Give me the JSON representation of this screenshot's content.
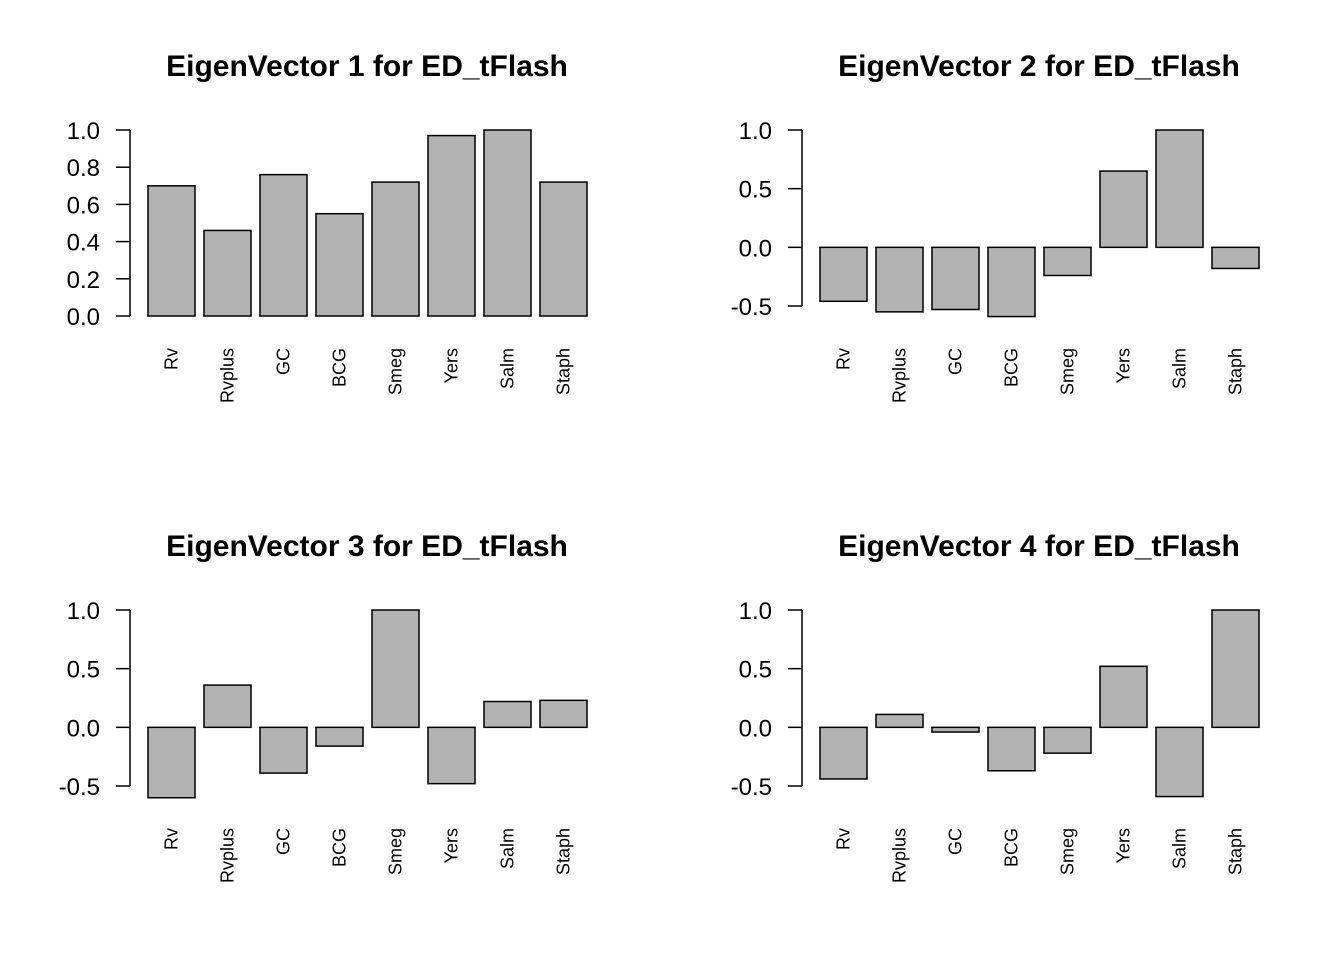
{
  "chart_data": [
    {
      "type": "bar",
      "title": "EigenVector 1 for ED_tFlash",
      "categories": [
        "Rv",
        "Rvplus",
        "GC",
        "BCG",
        "Smeg",
        "Yers",
        "Salm",
        "Staph"
      ],
      "values": [
        0.7,
        0.46,
        0.76,
        0.55,
        0.72,
        0.97,
        1.0,
        0.72
      ],
      "ylim": [
        0,
        1
      ],
      "yticks": [
        "0.0",
        "0.2",
        "0.4",
        "0.6",
        "0.8",
        "1.0"
      ],
      "bar_color": "#b3b3b3"
    },
    {
      "type": "bar",
      "title": "EigenVector 2 for ED_tFlash",
      "categories": [
        "Rv",
        "Rvplus",
        "GC",
        "BCG",
        "Smeg",
        "Yers",
        "Salm",
        "Staph"
      ],
      "values": [
        -0.46,
        -0.55,
        -0.53,
        -0.59,
        -0.24,
        0.65,
        1.0,
        -0.18
      ],
      "ylim": [
        -0.5,
        1
      ],
      "yticks": [
        "-0.5",
        "0.0",
        "0.5",
        "1.0"
      ],
      "bar_color": "#b3b3b3"
    },
    {
      "type": "bar",
      "title": "EigenVector 3 for ED_tFlash",
      "categories": [
        "Rv",
        "Rvplus",
        "GC",
        "BCG",
        "Smeg",
        "Yers",
        "Salm",
        "Staph"
      ],
      "values": [
        -0.6,
        0.36,
        -0.39,
        -0.16,
        1.0,
        -0.48,
        0.22,
        0.23
      ],
      "ylim": [
        -0.5,
        1
      ],
      "yticks": [
        "-0.5",
        "0.0",
        "0.5",
        "1.0"
      ],
      "bar_color": "#b3b3b3"
    },
    {
      "type": "bar",
      "title": "EigenVector 4 for ED_tFlash",
      "categories": [
        "Rv",
        "Rvplus",
        "GC",
        "BCG",
        "Smeg",
        "Yers",
        "Salm",
        "Staph"
      ],
      "values": [
        -0.44,
        0.11,
        -0.04,
        -0.37,
        -0.22,
        0.52,
        -0.59,
        1.0
      ],
      "ylim": [
        -0.5,
        1
      ],
      "yticks": [
        "-0.5",
        "0.0",
        "0.5",
        "1.0"
      ],
      "bar_color": "#b3b3b3"
    }
  ]
}
